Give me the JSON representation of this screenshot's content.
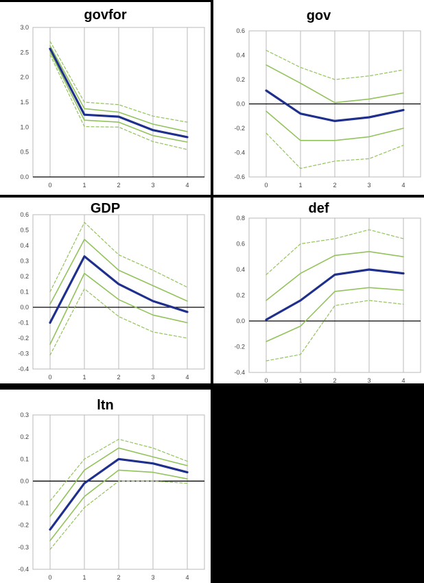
{
  "chart_data": [
    {
      "type": "line",
      "title": "govfor",
      "x": [
        0,
        1,
        2,
        3,
        4
      ],
      "ylim": [
        0.0,
        3.0
      ],
      "yticks": [
        "0.0",
        "0.5",
        "1.0",
        "1.5",
        "2.0",
        "2.5",
        "3.0"
      ],
      "ytick_values": [
        0,
        0.5,
        1.0,
        1.5,
        2.0,
        2.5,
        3.0
      ],
      "series": [
        {
          "role": "upper-outer-band",
          "style": "dashed",
          "values": [
            2.72,
            1.5,
            1.45,
            1.22,
            1.1
          ]
        },
        {
          "role": "upper-inner-band",
          "style": "solid-thin",
          "values": [
            2.63,
            1.37,
            1.3,
            1.06,
            0.91
          ]
        },
        {
          "role": "point-estimate",
          "style": "solid-thick",
          "values": [
            2.57,
            1.25,
            1.21,
            0.94,
            0.8
          ]
        },
        {
          "role": "lower-inner-band",
          "style": "solid-thin",
          "values": [
            2.51,
            1.14,
            1.1,
            0.83,
            0.7
          ]
        },
        {
          "role": "lower-outer-band",
          "style": "dashed",
          "values": [
            2.45,
            1.01,
            1.0,
            0.71,
            0.55
          ]
        }
      ]
    },
    {
      "type": "line",
      "title": "gov",
      "x": [
        0,
        1,
        2,
        3,
        4
      ],
      "ylim": [
        -0.6,
        0.6
      ],
      "yticks": [
        "-0.6",
        "-0.4",
        "-0.2",
        "0.0",
        "0.2",
        "0.4",
        "0.6"
      ],
      "ytick_values": [
        -0.6,
        -0.4,
        -0.2,
        0.0,
        0.2,
        0.4,
        0.6
      ],
      "series": [
        {
          "role": "upper-outer-band",
          "style": "dashed",
          "values": [
            0.44,
            0.3,
            0.2,
            0.23,
            0.28
          ]
        },
        {
          "role": "upper-inner-band",
          "style": "solid-thin",
          "values": [
            0.32,
            0.17,
            0.01,
            0.04,
            0.09
          ]
        },
        {
          "role": "point-estimate",
          "style": "solid-thick",
          "values": [
            0.11,
            -0.08,
            -0.14,
            -0.11,
            -0.05
          ]
        },
        {
          "role": "lower-inner-band",
          "style": "solid-thin",
          "values": [
            -0.06,
            -0.3,
            -0.3,
            -0.27,
            -0.2
          ]
        },
        {
          "role": "lower-outer-band",
          "style": "dashed",
          "values": [
            -0.24,
            -0.53,
            -0.47,
            -0.45,
            -0.34
          ]
        }
      ]
    },
    {
      "type": "line",
      "title": "GDP",
      "x": [
        0,
        1,
        2,
        3,
        4
      ],
      "ylim": [
        -0.4,
        0.6
      ],
      "yticks": [
        "-0.4",
        "-0.3",
        "-0.2",
        "-0.1",
        "0.0",
        "0.1",
        "0.2",
        "0.3",
        "0.4",
        "0.5",
        "0.6"
      ],
      "ytick_values": [
        -0.4,
        -0.3,
        -0.2,
        -0.1,
        0.0,
        0.1,
        0.2,
        0.3,
        0.4,
        0.5,
        0.6
      ],
      "series": [
        {
          "role": "upper-outer-band",
          "style": "dashed",
          "values": [
            0.1,
            0.55,
            0.34,
            0.24,
            0.13
          ]
        },
        {
          "role": "upper-inner-band",
          "style": "solid-thin",
          "values": [
            0.02,
            0.44,
            0.24,
            0.14,
            0.04
          ]
        },
        {
          "role": "point-estimate",
          "style": "solid-thick",
          "values": [
            -0.1,
            0.33,
            0.15,
            0.04,
            -0.03
          ]
        },
        {
          "role": "lower-inner-band",
          "style": "solid-thin",
          "values": [
            -0.24,
            0.22,
            0.05,
            -0.05,
            -0.1
          ]
        },
        {
          "role": "lower-outer-band",
          "style": "dashed",
          "values": [
            -0.31,
            0.12,
            -0.06,
            -0.16,
            -0.2
          ]
        }
      ]
    },
    {
      "type": "line",
      "title": "def",
      "x": [
        0,
        1,
        2,
        3,
        4
      ],
      "ylim": [
        -0.4,
        0.8
      ],
      "yticks": [
        "-0.4",
        "-0.2",
        "0.0",
        "0.2",
        "0.4",
        "0.6",
        "0.8"
      ],
      "ytick_values": [
        -0.4,
        -0.2,
        0.0,
        0.2,
        0.4,
        0.6,
        0.8
      ],
      "series": [
        {
          "role": "upper-outer-band",
          "style": "dashed",
          "values": [
            0.36,
            0.6,
            0.64,
            0.71,
            0.64
          ]
        },
        {
          "role": "upper-inner-band",
          "style": "solid-thin",
          "values": [
            0.16,
            0.37,
            0.51,
            0.54,
            0.5
          ]
        },
        {
          "role": "point-estimate",
          "style": "solid-thick",
          "values": [
            0.01,
            0.16,
            0.36,
            0.4,
            0.37
          ]
        },
        {
          "role": "lower-inner-band",
          "style": "solid-thin",
          "values": [
            -0.16,
            -0.04,
            0.23,
            0.26,
            0.24
          ]
        },
        {
          "role": "lower-outer-band",
          "style": "dashed",
          "values": [
            -0.31,
            -0.26,
            0.12,
            0.16,
            0.13
          ]
        }
      ]
    },
    {
      "type": "line",
      "title": "ltn",
      "x": [
        0,
        1,
        2,
        3,
        4
      ],
      "ylim": [
        -0.4,
        0.3
      ],
      "yticks": [
        "-0.4",
        "-0.3",
        "-0.2",
        "-0.1",
        "0.0",
        "0.1",
        "0.2",
        "0.3"
      ],
      "ytick_values": [
        -0.4,
        -0.3,
        -0.2,
        -0.1,
        0.0,
        0.1,
        0.2,
        0.3
      ],
      "series": [
        {
          "role": "upper-outer-band",
          "style": "dashed",
          "values": [
            -0.09,
            0.1,
            0.19,
            0.15,
            0.09
          ]
        },
        {
          "role": "upper-inner-band",
          "style": "solid-thin",
          "values": [
            -0.16,
            0.05,
            0.15,
            0.11,
            0.07
          ]
        },
        {
          "role": "point-estimate",
          "style": "solid-thick",
          "values": [
            -0.22,
            -0.01,
            0.1,
            0.08,
            0.04
          ]
        },
        {
          "role": "lower-inner-band",
          "style": "solid-thin",
          "values": [
            -0.27,
            -0.07,
            0.05,
            0.04,
            0.01
          ]
        },
        {
          "role": "lower-outer-band",
          "style": "dashed",
          "values": [
            -0.31,
            -0.12,
            0.0,
            0.0,
            -0.01
          ]
        }
      ]
    }
  ],
  "colors": {
    "point_estimate": "#1f2f8c",
    "band": "#92c35a",
    "grid": "#b8b8b8",
    "axis": "#000000",
    "tick_text": "#404040"
  }
}
